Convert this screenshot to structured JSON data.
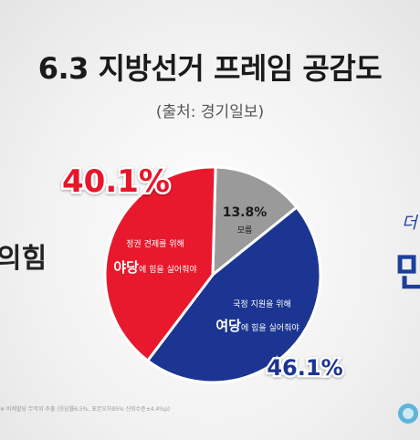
{
  "title": "6.3 지방선거 프레임 공감도",
  "subtitle": "(출처: 경기일보)",
  "left_party_fragment": "의힘",
  "right_party_fragment": "민",
  "right_party_top_fragment": "더",
  "footnote": "※ 비례할당 무작위 추출 (응답률6.5%, 표본오차95% 신뢰수준±4.4%p)",
  "colors": {
    "opposition": "#e8192c",
    "ruling": "#1c3592",
    "unsure": "#9a9a9a"
  },
  "chart_data": {
    "type": "pie",
    "title": "6.3 지방선거 프레임 공감도",
    "slices": [
      {
        "key": "unsure",
        "value": 13.8,
        "value_label": "13.8%",
        "label": "모름",
        "color": "#9a9a9a"
      },
      {
        "key": "ruling",
        "value": 46.1,
        "value_label": "46.1%",
        "label_line1": "국정 지원을 위해",
        "label_bold": "여당",
        "label_rest": "에 힘을 실어줘야",
        "color": "#1c3592"
      },
      {
        "key": "opposition",
        "value": 40.1,
        "value_label": "40.1%",
        "label_line1": "정권 견제를 위해",
        "label_bold": "야당",
        "label_rest": "에 힘을 실어줘야",
        "color": "#e8192c"
      }
    ]
  }
}
